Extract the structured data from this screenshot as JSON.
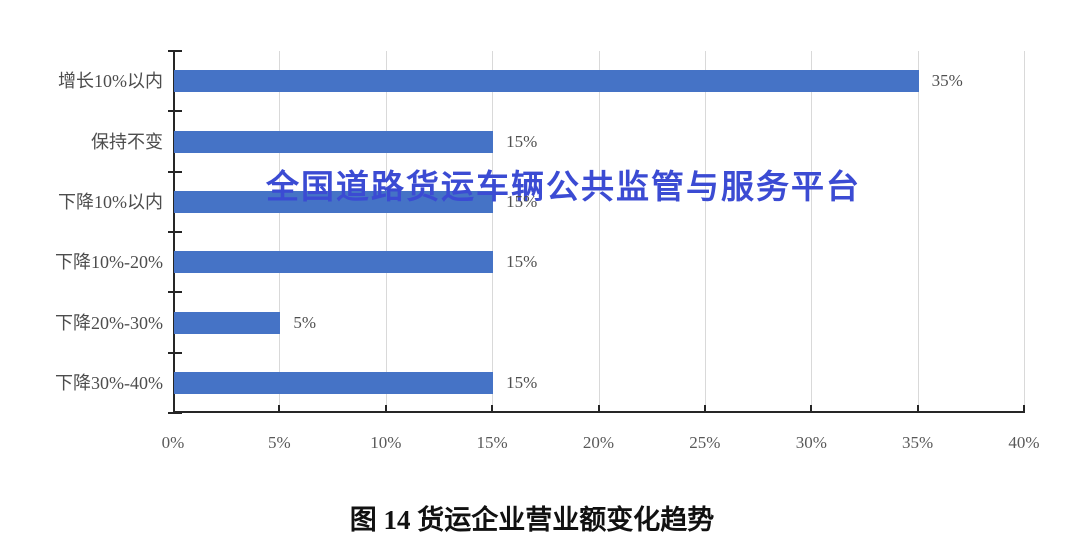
{
  "chart_data": {
    "type": "bar",
    "orientation": "horizontal",
    "title": "图 14 货运企业营业额变化趋势",
    "categories": [
      "增长10%以内",
      "保持不变",
      "下降10%以内",
      "下降10%-20%",
      "下降20%-30%",
      "下降30%-40%"
    ],
    "values": [
      35,
      15,
      15,
      15,
      5,
      15
    ],
    "data_labels": [
      "35%",
      "15%",
      "15%",
      "15%",
      "5%",
      "15%"
    ],
    "x_ticks": [
      "0%",
      "5%",
      "10%",
      "15%",
      "20%",
      "25%",
      "30%",
      "35%",
      "40%"
    ],
    "xlim": [
      0,
      40
    ],
    "grid": "vertical-only",
    "legend": "none",
    "bar_color": "#4573C6",
    "axis_color": "#262626",
    "grid_color": "#d9d9d9",
    "label_color": "#4d4d4d"
  },
  "watermark": {
    "text": "全国道路货运车辆公共监管与服务平台",
    "color": "#3B4BD3"
  },
  "caption": "图 14 货运企业营业额变化趋势"
}
